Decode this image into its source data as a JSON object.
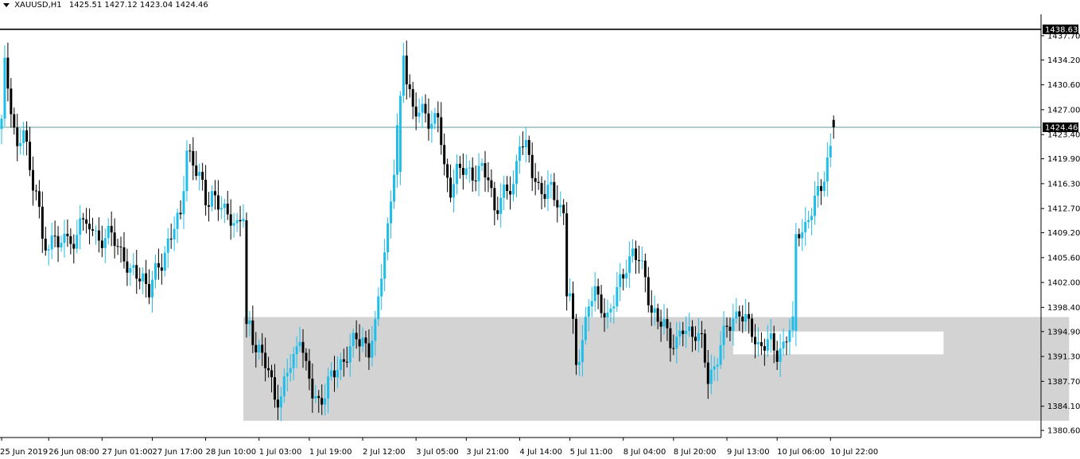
{
  "header": {
    "menu_icon": "triangle-down-icon",
    "symbol": "XAUUSD,H1",
    "ohlc": "1425.51 1427.12 1423.04 1424.46"
  },
  "colors": {
    "bull": "#1fbde9",
    "bear": "#000000",
    "zone": "#d3d3d3",
    "price_line": "#5e9e9e",
    "axis": "#000000"
  },
  "chart_data": {
    "type": "candlestick",
    "symbol": "XAUUSD",
    "timeframe": "H1",
    "ylim": [
      1379.8,
      1440.8
    ],
    "yticks": [
      1380.6,
      1384.1,
      1387.7,
      1391.3,
      1394.9,
      1398.4,
      1402.0,
      1405.6,
      1409.2,
      1412.7,
      1416.3,
      1419.9,
      1423.4,
      1427.0,
      1430.6,
      1434.2,
      1437.7
    ],
    "xticks": [
      "25 Jun 2019",
      "26 Jun 08:00",
      "27 Jun 01:00",
      "27 Jun 17:00",
      "28 Jun 10:00",
      "1 Jul 03:00",
      "1 Jul 19:00",
      "2 Jul 12:00",
      "3 Jul 05:00",
      "3 Jul 21:00",
      "4 Jul 14:00",
      "5 Jul 11:00",
      "8 Jul 04:00",
      "8 Jul 20:00",
      "9 Jul 13:00",
      "10 Jul 06:00",
      "10 Jul 22:00"
    ],
    "xtick_index": [
      0,
      15,
      32,
      48,
      65,
      82,
      98,
      115,
      132,
      148,
      165,
      181,
      198,
      214,
      231,
      247,
      264
    ],
    "current_price": 1424.46,
    "resistance_level": 1438.63,
    "zones": [
      {
        "name": "demand-zone",
        "start_index": 77,
        "end_index": 340,
        "low": 1382.0,
        "high": 1397.0,
        "color": "#d3d3d3"
      },
      {
        "name": "inner-zone",
        "start_index": 233,
        "end_index": 300,
        "low": 1391.6,
        "high": 1394.9,
        "color": "#ffffff"
      }
    ],
    "anchors": [
      [
        0,
        1425.0
      ],
      [
        1,
        1433.0
      ],
      [
        3,
        1428.0
      ],
      [
        5,
        1421.0
      ],
      [
        7,
        1424.0
      ],
      [
        9,
        1418.0
      ],
      [
        11,
        1416.0
      ],
      [
        13,
        1408.0
      ],
      [
        15,
        1406.0
      ],
      [
        17,
        1410.0
      ],
      [
        19,
        1407.0
      ],
      [
        21,
        1409.0
      ],
      [
        23,
        1406.0
      ],
      [
        25,
        1413.0
      ],
      [
        27,
        1409.0
      ],
      [
        29,
        1410.0
      ],
      [
        31,
        1408.0
      ],
      [
        33,
        1409.0
      ],
      [
        36,
        1408.0
      ],
      [
        39,
        1406.0
      ],
      [
        41,
        1403.0
      ],
      [
        43,
        1403.0
      ],
      [
        45,
        1403.0
      ],
      [
        47,
        1401.0
      ],
      [
        49,
        1403.0
      ],
      [
        51,
        1405.0
      ],
      [
        53,
        1408.0
      ],
      [
        55,
        1410.0
      ],
      [
        57,
        1411.0
      ],
      [
        59,
        1422.0
      ],
      [
        61,
        1419.0
      ],
      [
        63,
        1417.0
      ],
      [
        65,
        1414.0
      ],
      [
        67,
        1415.0
      ],
      [
        69,
        1413.0
      ],
      [
        71,
        1412.0
      ],
      [
        73,
        1412.0
      ],
      [
        75,
        1410.0
      ],
      [
        77,
        1411.5
      ],
      [
        79,
        1396.0
      ],
      [
        81,
        1393.0
      ],
      [
        83,
        1391.0
      ],
      [
        85,
        1389.0
      ],
      [
        87,
        1386.0
      ],
      [
        89,
        1385.0
      ],
      [
        91,
        1389.0
      ],
      [
        93,
        1391.0
      ],
      [
        95,
        1395.0
      ],
      [
        97,
        1389.0
      ],
      [
        99,
        1386.0
      ],
      [
        101,
        1385.0
      ],
      [
        103,
        1386.0
      ],
      [
        105,
        1388.0
      ],
      [
        107,
        1390.0
      ],
      [
        109,
        1391.0
      ],
      [
        111,
        1392.0
      ],
      [
        113,
        1394.0
      ],
      [
        115,
        1394.0
      ],
      [
        117,
        1392.0
      ],
      [
        119,
        1395.0
      ],
      [
        121,
        1404.0
      ],
      [
        123,
        1410.0
      ],
      [
        125,
        1418.0
      ],
      [
        127,
        1429.0
      ],
      [
        128,
        1436.0
      ],
      [
        129,
        1432.0
      ],
      [
        131,
        1427.0
      ],
      [
        133,
        1426.0
      ],
      [
        135,
        1427.0
      ],
      [
        137,
        1425.0
      ],
      [
        139,
        1426.0
      ],
      [
        141,
        1418.0
      ],
      [
        143,
        1416.0
      ],
      [
        145,
        1418.0
      ],
      [
        147,
        1418.0
      ],
      [
        149,
        1418.0
      ],
      [
        151,
        1418.0
      ],
      [
        153,
        1418.0
      ],
      [
        155,
        1417.0
      ],
      [
        157,
        1413.0
      ],
      [
        159,
        1414.0
      ],
      [
        161,
        1415.0
      ],
      [
        163,
        1416.0
      ],
      [
        165,
        1423.0
      ],
      [
        167,
        1421.0
      ],
      [
        169,
        1418.0
      ],
      [
        171,
        1416.0
      ],
      [
        173,
        1415.0
      ],
      [
        175,
        1415.0
      ],
      [
        177,
        1414.0
      ],
      [
        179,
        1412.0
      ],
      [
        181,
        1400.0
      ],
      [
        183,
        1390.0
      ],
      [
        185,
        1394.0
      ],
      [
        187,
        1399.0
      ],
      [
        189,
        1400.0
      ],
      [
        191,
        1399.0
      ],
      [
        193,
        1397.0
      ],
      [
        195,
        1399.0
      ],
      [
        197,
        1402.0
      ],
      [
        199,
        1405.0
      ],
      [
        201,
        1406.0
      ],
      [
        203,
        1405.0
      ],
      [
        205,
        1403.0
      ],
      [
        207,
        1398.0
      ],
      [
        209,
        1396.0
      ],
      [
        211,
        1396.0
      ],
      [
        213,
        1394.0
      ],
      [
        215,
        1393.0
      ],
      [
        217,
        1395.0
      ],
      [
        219,
        1395.0
      ],
      [
        221,
        1395.0
      ],
      [
        223,
        1393.0
      ],
      [
        225,
        1388.0
      ],
      [
        227,
        1390.0
      ],
      [
        229,
        1393.0
      ],
      [
        231,
        1395.0
      ],
      [
        233,
        1397.0
      ],
      [
        235,
        1398.0
      ],
      [
        237,
        1396.0
      ],
      [
        239,
        1395.0
      ],
      [
        241,
        1393.0
      ],
      [
        243,
        1393.0
      ],
      [
        245,
        1393.0
      ],
      [
        247,
        1392.0
      ],
      [
        249,
        1393.0
      ],
      [
        251,
        1395.0
      ],
      [
        253,
        1396.0
      ],
      [
        254,
        1410.0
      ],
      [
        256,
        1410.0
      ],
      [
        258,
        1412.0
      ],
      [
        260,
        1415.0
      ],
      [
        262,
        1418.0
      ],
      [
        264,
        1421.0
      ],
      [
        265,
        1424.46
      ]
    ],
    "gaps": [
      [
        78,
        1411.0,
        1396.0
      ],
      [
        127,
        1418.0,
        1429.0
      ],
      [
        180,
        1412.0,
        1400.0
      ],
      [
        253,
        1395.0,
        1409.0
      ]
    ]
  }
}
